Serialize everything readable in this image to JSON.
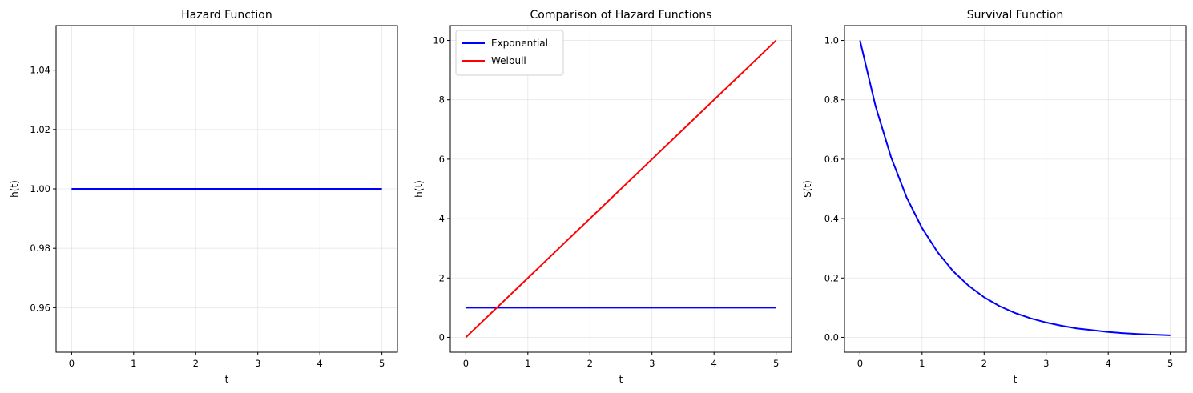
{
  "chart_data": [
    {
      "type": "line",
      "title": "Hazard Function",
      "xlabel": "t",
      "ylabel": "h(t)",
      "xlim": [
        -0.25,
        5.25
      ],
      "ylim": [
        0.945,
        1.055
      ],
      "xticks": [
        0,
        1,
        2,
        3,
        4,
        5
      ],
      "xtick_labels": [
        "0",
        "1",
        "2",
        "3",
        "4",
        "5"
      ],
      "yticks": [
        0.96,
        0.98,
        1.0,
        1.02,
        1.04
      ],
      "ytick_labels": [
        "0.96",
        "0.98",
        "1.00",
        "1.02",
        "1.04"
      ],
      "grid": true,
      "legend": null,
      "series": [
        {
          "color": "#0000ff",
          "x": [
            0,
            5
          ],
          "y": [
            1.0,
            1.0
          ]
        }
      ]
    },
    {
      "type": "line",
      "title": "Comparison of Hazard Functions",
      "xlabel": "t",
      "ylabel": "h(t)",
      "xlim": [
        -0.25,
        5.25
      ],
      "ylim": [
        -0.5,
        10.5
      ],
      "xticks": [
        0,
        1,
        2,
        3,
        4,
        5
      ],
      "xtick_labels": [
        "0",
        "1",
        "2",
        "3",
        "4",
        "5"
      ],
      "yticks": [
        0,
        2,
        4,
        6,
        8,
        10
      ],
      "ytick_labels": [
        "0",
        "2",
        "4",
        "6",
        "8",
        "10"
      ],
      "grid": true,
      "legend": "top-left",
      "series": [
        {
          "name": "Exponential",
          "color": "#0000ff",
          "x": [
            0,
            5
          ],
          "y": [
            1,
            1
          ]
        },
        {
          "name": "Weibull",
          "color": "#ff0000",
          "x": [
            0,
            5
          ],
          "y": [
            0,
            10
          ]
        }
      ]
    },
    {
      "type": "line",
      "title": "Survival Function",
      "xlabel": "t",
      "ylabel": "S(t)",
      "xlim": [
        -0.25,
        5.25
      ],
      "ylim": [
        -0.05,
        1.05
      ],
      "xticks": [
        0,
        1,
        2,
        3,
        4,
        5
      ],
      "xtick_labels": [
        "0",
        "1",
        "2",
        "3",
        "4",
        "5"
      ],
      "yticks": [
        0.0,
        0.2,
        0.4,
        0.6,
        0.8,
        1.0
      ],
      "ytick_labels": [
        "0.0",
        "0.2",
        "0.4",
        "0.6",
        "0.8",
        "1.0"
      ],
      "grid": true,
      "legend": null,
      "series": [
        {
          "color": "#0000ff",
          "x": [
            0,
            0.25,
            0.5,
            0.75,
            1,
            1.25,
            1.5,
            1.75,
            2,
            2.25,
            2.5,
            2.75,
            3,
            3.25,
            3.5,
            3.75,
            4,
            4.25,
            4.5,
            4.75,
            5
          ],
          "y": [
            1.0,
            0.779,
            0.607,
            0.472,
            0.368,
            0.287,
            0.223,
            0.174,
            0.135,
            0.105,
            0.082,
            0.064,
            0.05,
            0.039,
            0.03,
            0.024,
            0.018,
            0.014,
            0.011,
            0.009,
            0.007
          ]
        }
      ]
    }
  ]
}
